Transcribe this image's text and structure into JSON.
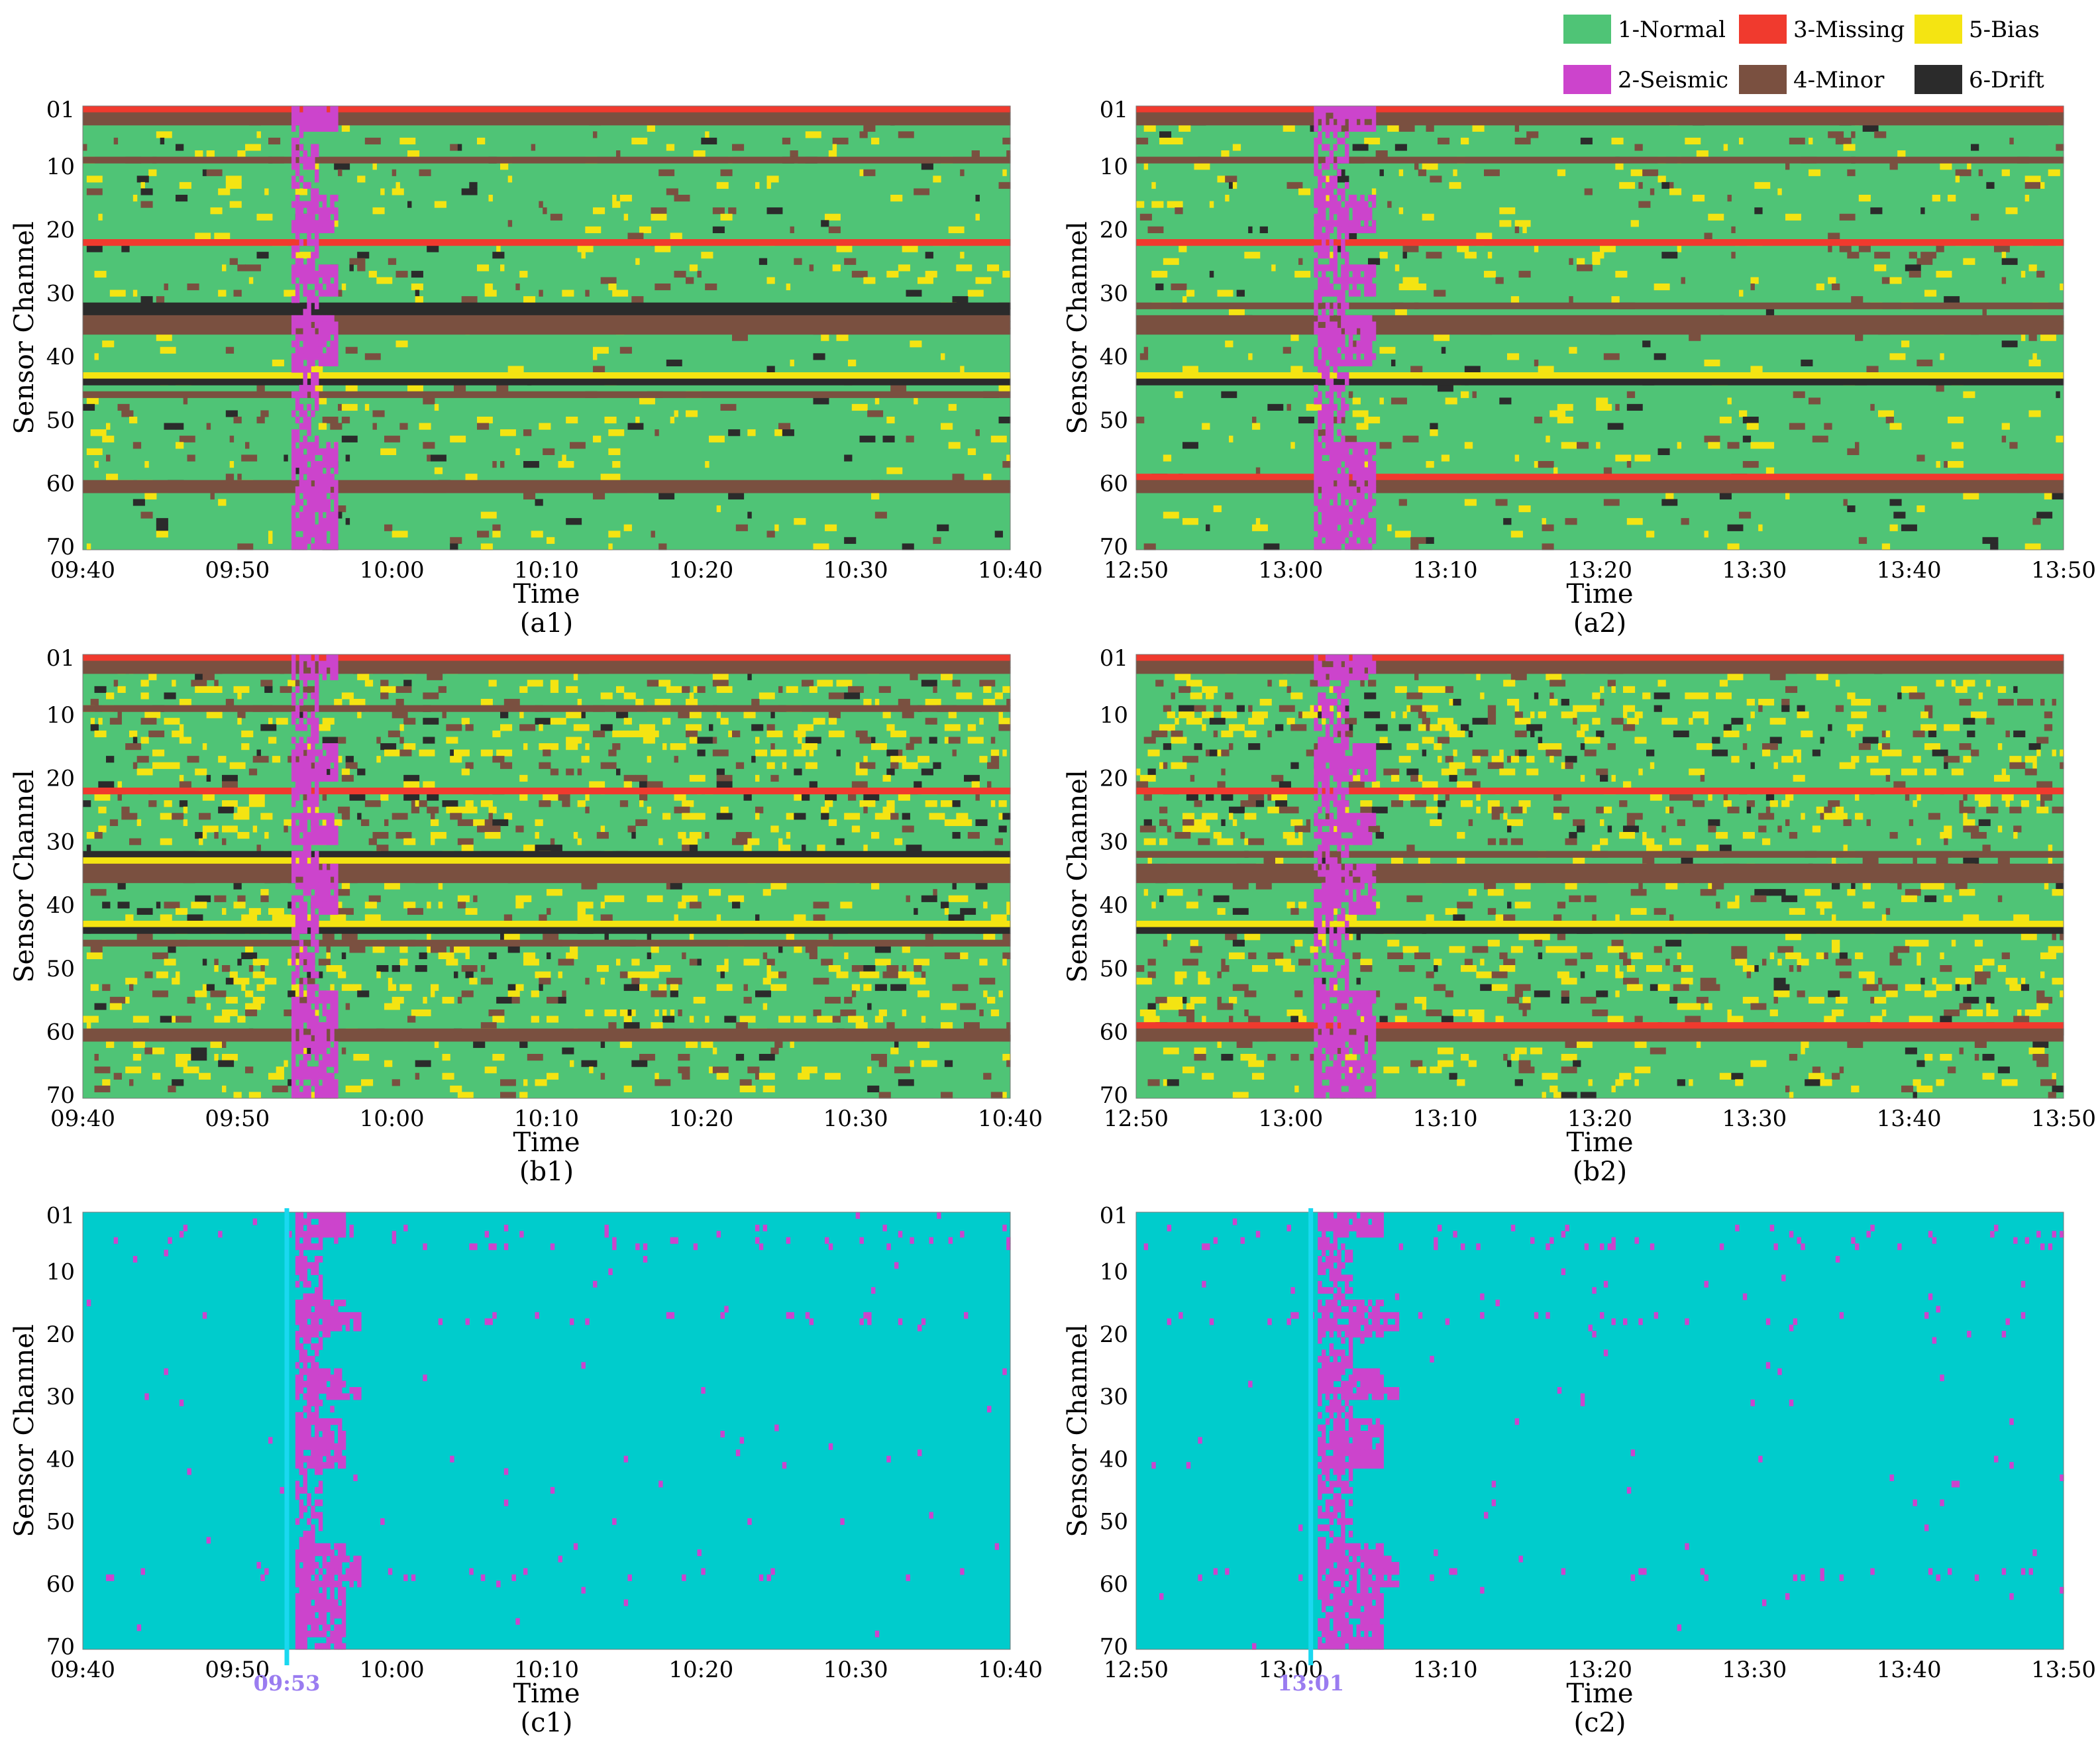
{
  "figure": {
    "legend": [
      {
        "label": "1-Normal",
        "color": "#4fc476"
      },
      {
        "label": "2-Seismic",
        "color": "#cc44cc"
      },
      {
        "label": "3-Missing",
        "color": "#f03a2e"
      },
      {
        "label": "4-Minor",
        "color": "#7a5040"
      },
      {
        "label": "5-Bias",
        "color": "#f4e412"
      },
      {
        "label": "6-Drift",
        "color": "#2b2b2b"
      }
    ],
    "colors": {
      "normal": "#4fc476",
      "seismic": "#cc44cc",
      "missing": "#f03a2e",
      "minor": "#7a5040",
      "bias": "#f4e412",
      "drift": "#2b2b2b",
      "cyan_background": "#00cccc",
      "marker_line": "#1ad8f0",
      "marker_text": "#9a7cf0"
    }
  },
  "chart_data": [
    {
      "id": "a1",
      "panel_label": "(a1)",
      "type": "heatmap",
      "variant": "anomaly",
      "xlabel": "Time",
      "ylabel": "Sensor Channel",
      "x_ticks": [
        "09:40",
        "09:50",
        "10:00",
        "10:10",
        "10:20",
        "10:30",
        "10:40"
      ],
      "y_ticks": [
        "01",
        "10",
        "20",
        "30",
        "40",
        "50",
        "60",
        "70"
      ],
      "x_range_minutes": [
        0,
        60
      ],
      "y_range": [
        1,
        70
      ],
      "seismic_window_minutes": [
        13.5,
        16.5
      ],
      "bands": [
        {
          "channels": [
            1,
            1
          ],
          "category": "missing"
        },
        {
          "channels": [
            2,
            3
          ],
          "category": "minor"
        },
        {
          "channels": [
            9,
            9
          ],
          "category": "minor"
        },
        {
          "channels": [
            22,
            22
          ],
          "category": "missing"
        },
        {
          "channels": [
            32,
            33
          ],
          "category": "drift"
        },
        {
          "channels": [
            34,
            36
          ],
          "category": "minor"
        },
        {
          "channels": [
            43,
            43
          ],
          "category": "bias"
        },
        {
          "channels": [
            44,
            44
          ],
          "category": "drift"
        },
        {
          "channels": [
            46,
            46
          ],
          "category": "minor"
        },
        {
          "channels": [
            60,
            61
          ],
          "category": "minor"
        }
      ],
      "noise_density": 0.05,
      "seed": 11
    },
    {
      "id": "a2",
      "panel_label": "(a2)",
      "type": "heatmap",
      "variant": "anomaly",
      "xlabel": "Time",
      "ylabel": "Sensor Channel",
      "x_ticks": [
        "12:50",
        "13:00",
        "13:10",
        "13:20",
        "13:30",
        "13:40",
        "13:50"
      ],
      "y_ticks": [
        "01",
        "10",
        "20",
        "30",
        "40",
        "50",
        "60",
        "70"
      ],
      "x_range_minutes": [
        0,
        60
      ],
      "y_range": [
        1,
        70
      ],
      "seismic_window_minutes": [
        11.5,
        15.5
      ],
      "bands": [
        {
          "channels": [
            1,
            1
          ],
          "category": "missing"
        },
        {
          "channels": [
            2,
            3
          ],
          "category": "minor"
        },
        {
          "channels": [
            9,
            9
          ],
          "category": "minor"
        },
        {
          "channels": [
            22,
            22
          ],
          "category": "missing"
        },
        {
          "channels": [
            32,
            32
          ],
          "category": "minor"
        },
        {
          "channels": [
            34,
            36
          ],
          "category": "minor"
        },
        {
          "channels": [
            43,
            43
          ],
          "category": "bias"
        },
        {
          "channels": [
            44,
            44
          ],
          "category": "drift"
        },
        {
          "channels": [
            59,
            59
          ],
          "category": "missing"
        },
        {
          "channels": [
            60,
            61
          ],
          "category": "minor"
        }
      ],
      "noise_density": 0.05,
      "seed": 23
    },
    {
      "id": "b1",
      "panel_label": "(b1)",
      "type": "heatmap",
      "variant": "anomaly",
      "xlabel": "Time",
      "ylabel": "Sensor Channel",
      "x_ticks": [
        "09:40",
        "09:50",
        "10:00",
        "10:10",
        "10:20",
        "10:30",
        "10:40"
      ],
      "y_ticks": [
        "01",
        "10",
        "20",
        "30",
        "40",
        "50",
        "60",
        "70"
      ],
      "x_range_minutes": [
        0,
        60
      ],
      "y_range": [
        1,
        70
      ],
      "seismic_window_minutes": [
        13.5,
        16.5
      ],
      "bands": [
        {
          "channels": [
            1,
            1
          ],
          "category": "missing"
        },
        {
          "channels": [
            2,
            3
          ],
          "category": "minor"
        },
        {
          "channels": [
            9,
            9
          ],
          "category": "minor"
        },
        {
          "channels": [
            22,
            22
          ],
          "category": "missing"
        },
        {
          "channels": [
            32,
            32
          ],
          "category": "drift"
        },
        {
          "channels": [
            33,
            33
          ],
          "category": "bias"
        },
        {
          "channels": [
            34,
            36
          ],
          "category": "minor"
        },
        {
          "channels": [
            43,
            43
          ],
          "category": "bias"
        },
        {
          "channels": [
            44,
            44
          ],
          "category": "drift"
        },
        {
          "channels": [
            46,
            46
          ],
          "category": "minor"
        },
        {
          "channels": [
            60,
            61
          ],
          "category": "minor"
        }
      ],
      "noise_density": 0.13,
      "seed": 37
    },
    {
      "id": "b2",
      "panel_label": "(b2)",
      "type": "heatmap",
      "variant": "anomaly",
      "xlabel": "Time",
      "ylabel": "Sensor Channel",
      "x_ticks": [
        "12:50",
        "13:00",
        "13:10",
        "13:20",
        "13:30",
        "13:40",
        "13:50"
      ],
      "y_ticks": [
        "01",
        "10",
        "20",
        "30",
        "40",
        "50",
        "60",
        "70"
      ],
      "x_range_minutes": [
        0,
        60
      ],
      "y_range": [
        1,
        70
      ],
      "seismic_window_minutes": [
        11.5,
        15.5
      ],
      "bands": [
        {
          "channels": [
            1,
            1
          ],
          "category": "missing"
        },
        {
          "channels": [
            2,
            3
          ],
          "category": "minor"
        },
        {
          "channels": [
            22,
            22
          ],
          "category": "missing"
        },
        {
          "channels": [
            32,
            32
          ],
          "category": "minor"
        },
        {
          "channels": [
            34,
            36
          ],
          "category": "minor"
        },
        {
          "channels": [
            43,
            43
          ],
          "category": "bias"
        },
        {
          "channels": [
            44,
            44
          ],
          "category": "drift"
        },
        {
          "channels": [
            59,
            59
          ],
          "category": "missing"
        },
        {
          "channels": [
            60,
            61
          ],
          "category": "minor"
        }
      ],
      "noise_density": 0.13,
      "seed": 53
    },
    {
      "id": "c1",
      "panel_label": "(c1)",
      "type": "heatmap",
      "variant": "seismic",
      "xlabel": "Time",
      "ylabel": "Sensor Channel",
      "x_ticks": [
        "09:40",
        "09:50",
        "10:00",
        "10:10",
        "10:20",
        "10:30",
        "10:40"
      ],
      "y_ticks": [
        "01",
        "10",
        "20",
        "30",
        "40",
        "50",
        "60",
        "70"
      ],
      "x_range_minutes": [
        0,
        60
      ],
      "y_range": [
        1,
        70
      ],
      "marker": {
        "label": "09:53",
        "minute": 13.2
      },
      "seismic_window_minutes": [
        13.8,
        17
      ],
      "noise_density": 0.012,
      "seed": 71
    },
    {
      "id": "c2",
      "panel_label": "(c2)",
      "type": "heatmap",
      "variant": "seismic",
      "xlabel": "Time",
      "ylabel": "Sensor Channel",
      "x_ticks": [
        "12:50",
        "13:00",
        "13:10",
        "13:20",
        "13:30",
        "13:40",
        "13:50"
      ],
      "y_ticks": [
        "01",
        "10",
        "20",
        "30",
        "40",
        "50",
        "60",
        "70"
      ],
      "x_range_minutes": [
        0,
        60
      ],
      "y_range": [
        1,
        70
      ],
      "marker": {
        "label": "13:01",
        "minute": 11.3
      },
      "seismic_window_minutes": [
        11.8,
        16
      ],
      "noise_density": 0.014,
      "seed": 89
    }
  ]
}
